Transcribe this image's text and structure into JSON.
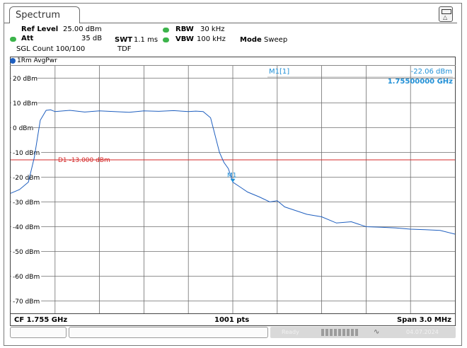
{
  "window": {
    "tab_title": "Spectrum"
  },
  "settings": {
    "ref_level_label": "Ref Level",
    "ref_level_value": "25.00 dBm",
    "att_label": "Att",
    "att_value": "35 dB",
    "swt_label": "SWT",
    "swt_value": "1.1 ms",
    "rbw_label": "RBW",
    "rbw_value": "30 kHz",
    "vbw_label": "VBW",
    "vbw_value": "100 kHz",
    "mode_label": "Mode",
    "mode_value": "Sweep",
    "sgl_count": "SGL Count 100/100",
    "tdf": "TDF",
    "indicator_color": "#3cb44b"
  },
  "trace": {
    "label": "1Rm AvgPwr",
    "color": "#1f5fbf"
  },
  "marker": {
    "name": "M1[1]",
    "level": "-22.06 dBm",
    "frequency": "1.75500000 GHz",
    "tag": "M1",
    "color": "#1f8fd6"
  },
  "limit_line": {
    "label": "D1 -13.000 dBm",
    "value_dbm": -13,
    "color": "#d42a2a"
  },
  "footer": {
    "center_freq": "CF 1.755 GHz",
    "points": "1001 pts",
    "span": "Span 3.0 MHz"
  },
  "status_bar": {
    "ready": "Ready",
    "date": "04.07.2024"
  },
  "chart_data": {
    "type": "line",
    "xlabel": "",
    "ylabel": "",
    "ylim": [
      -75,
      25
    ],
    "xlim": [
      -1.5,
      1.5
    ],
    "x_units": "MHz offset from CF",
    "grid": true,
    "y_ticks": [
      {
        "value": 20,
        "label": "20 dBm"
      },
      {
        "value": 10,
        "label": "10 dBm"
      },
      {
        "value": 0,
        "label": "0 dBm"
      },
      {
        "value": -10,
        "label": "-10 dBm"
      },
      {
        "value": -20,
        "label": "-20 dBm"
      },
      {
        "value": -30,
        "label": "-30 dBm"
      },
      {
        "value": -40,
        "label": "-40 dBm"
      },
      {
        "value": -50,
        "label": "-50 dBm"
      },
      {
        "value": -60,
        "label": "-60 dBm"
      },
      {
        "value": -70,
        "label": "-70 dBm"
      }
    ],
    "series": [
      {
        "color": "#1f5fbf",
        "x": [
          -1.5,
          -1.44,
          -1.38,
          -1.34,
          -1.3,
          -1.26,
          -1.23,
          -1.2,
          -1.1,
          -1.0,
          -0.9,
          -0.8,
          -0.7,
          -0.6,
          -0.5,
          -0.4,
          -0.3,
          -0.25,
          -0.2,
          -0.15,
          -0.12,
          -0.09,
          -0.06,
          -0.03,
          0.0,
          0.05,
          0.1,
          0.18,
          0.25,
          0.3,
          0.35,
          0.4,
          0.5,
          0.6,
          0.7,
          0.8,
          0.9,
          1.0,
          1.1,
          1.2,
          1.3,
          1.4,
          1.5
        ],
        "y": [
          -26.5,
          -25,
          -22,
          -12,
          3,
          7,
          7.2,
          6.5,
          7,
          6.3,
          6.8,
          6.5,
          6.2,
          6.8,
          6.6,
          6.9,
          6.5,
          6.7,
          6.5,
          4,
          -3,
          -10,
          -14,
          -16.5,
          -22,
          -24,
          -26,
          -28,
          -30,
          -29.5,
          -32,
          -33,
          -35,
          -36,
          -38.5,
          -38,
          -40,
          -40.2,
          -40.5,
          -41,
          -41.2,
          -41.5,
          -43
        ]
      }
    ],
    "marker_point": {
      "x": 0.0,
      "y": -22.06
    }
  }
}
